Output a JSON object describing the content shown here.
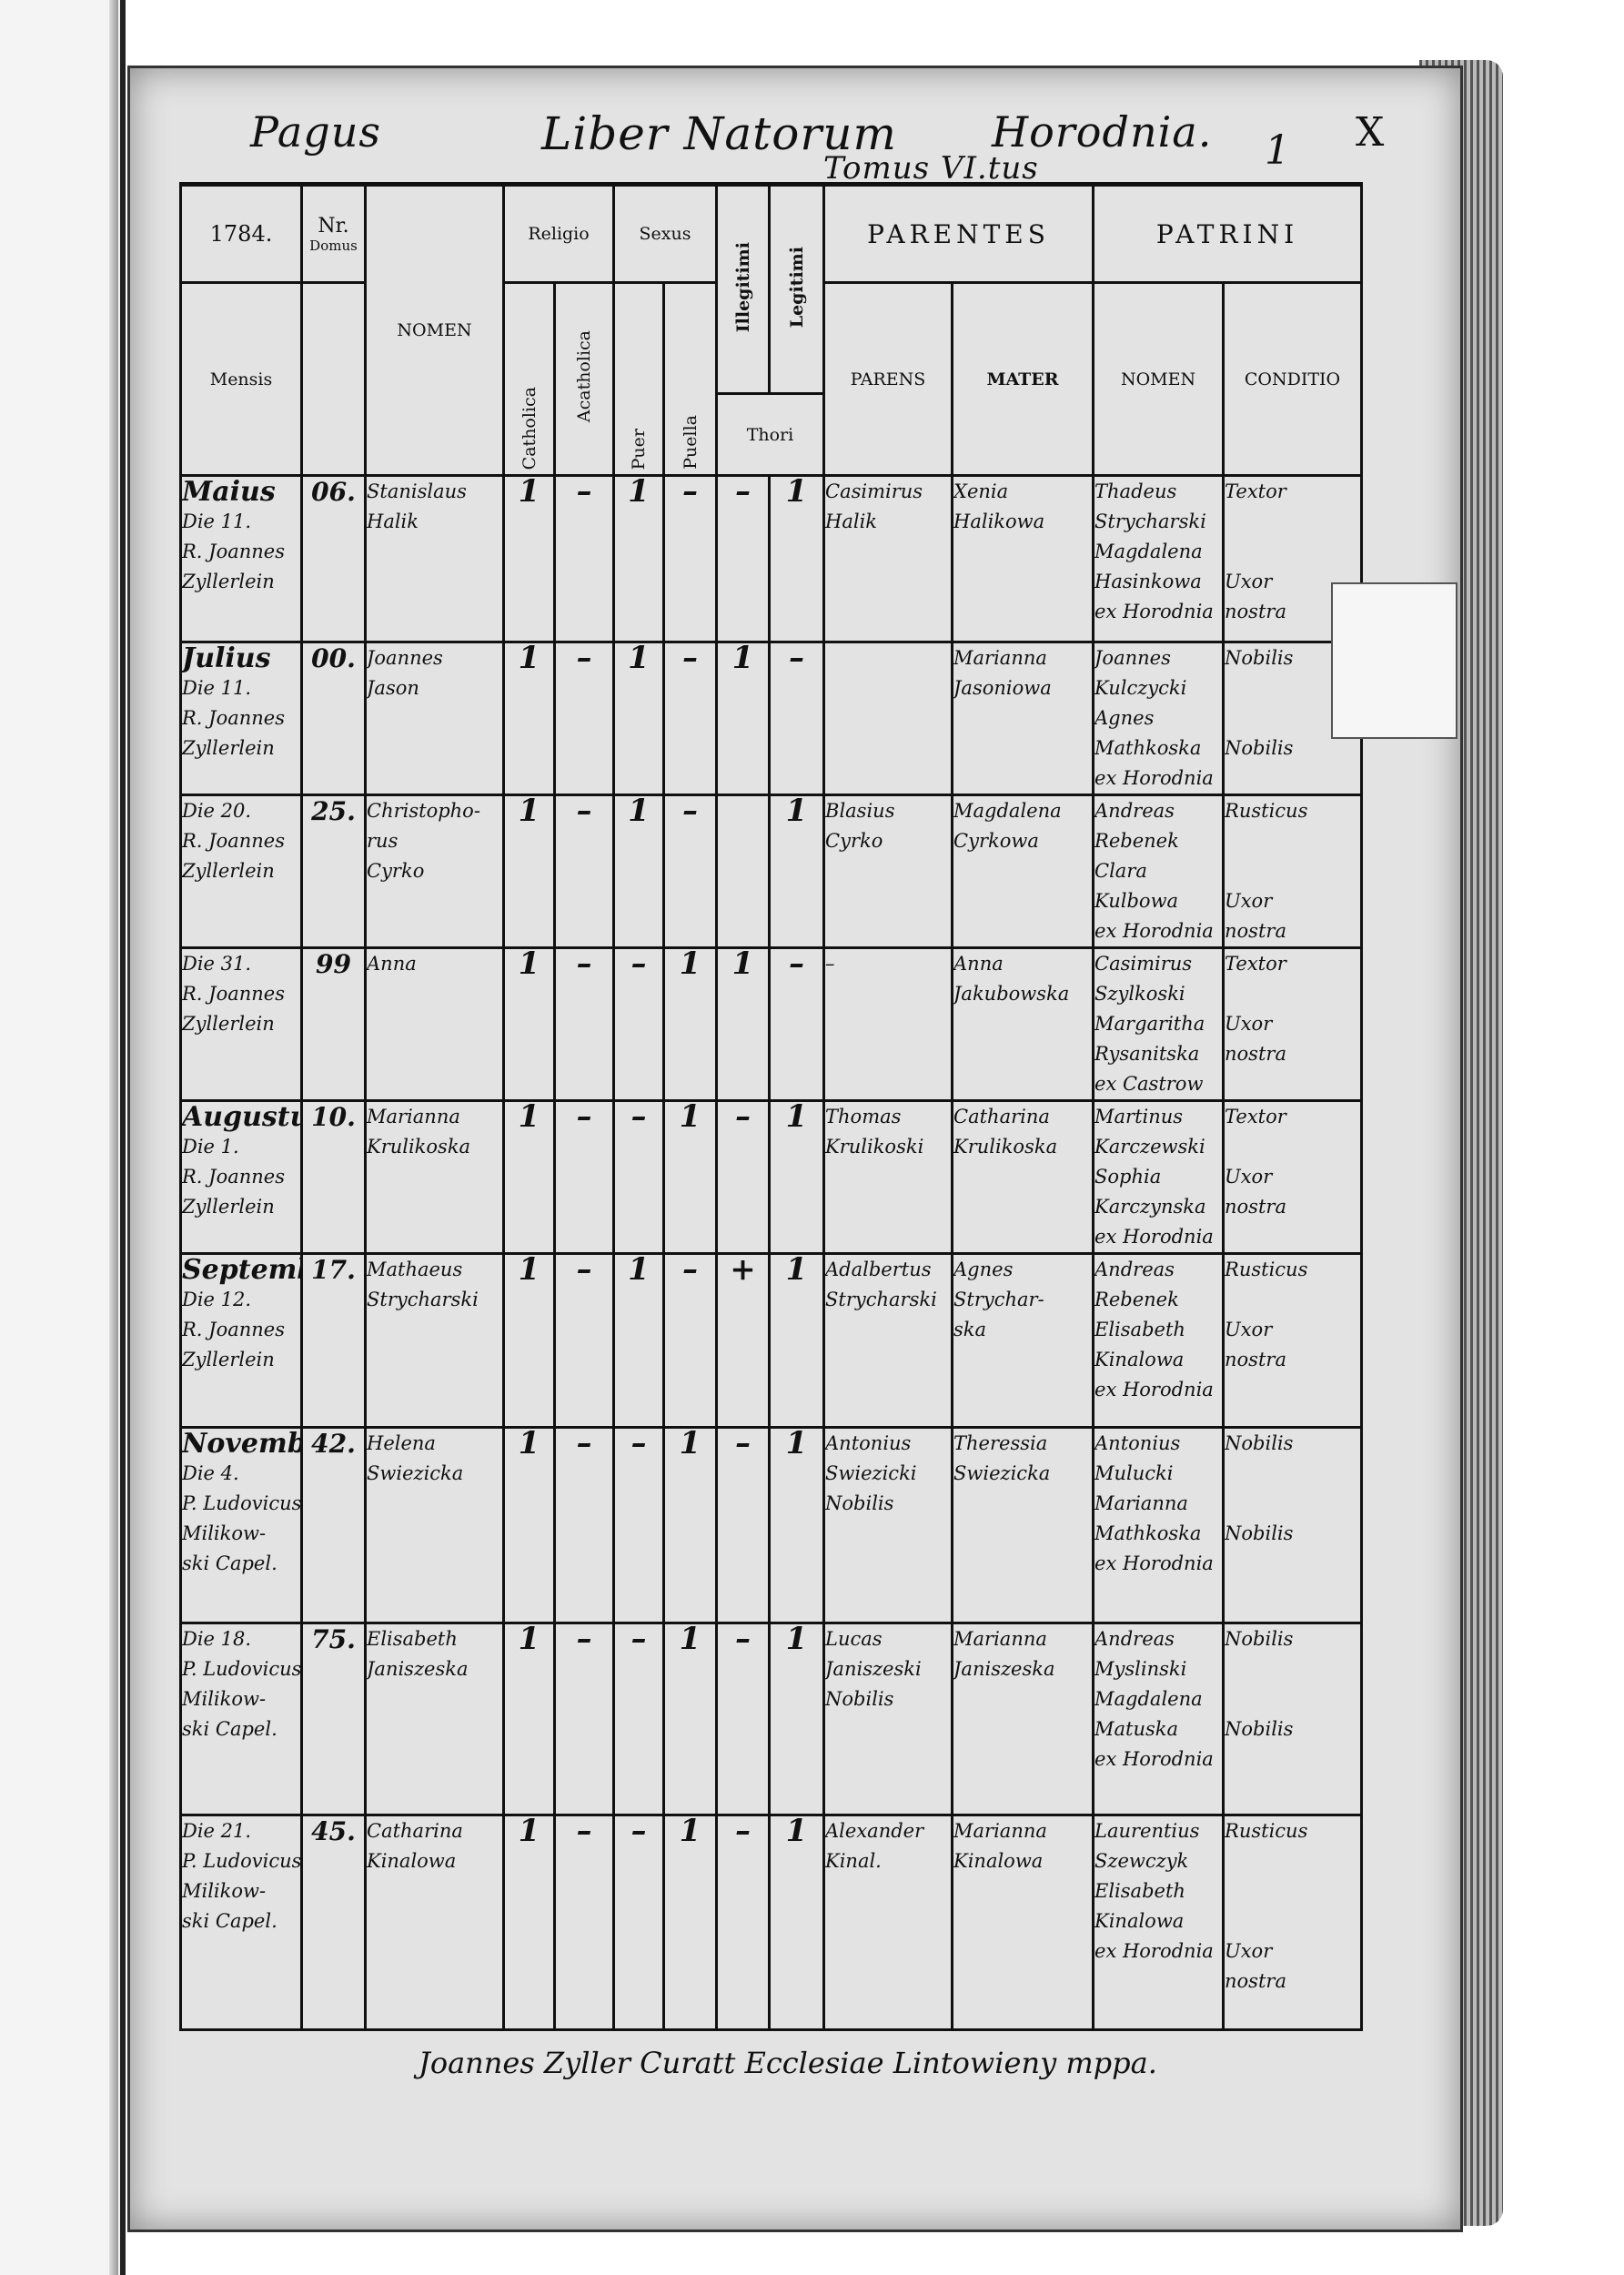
{
  "header": {
    "pagus": "Pagus",
    "title": "Liber Natorum",
    "place": "Horodnia.",
    "tomus": "Tomus VI.tus",
    "folio": "1",
    "mark": "X"
  },
  "columns": {
    "year": "1784.",
    "nr": "Nr.",
    "domus": "Domus",
    "mensis": "Mensis",
    "nomen": "NOMEN",
    "religio": "Religio",
    "catholica": "Catholica",
    "acatholica": "Acatholica",
    "sexus": "Sexus",
    "puer": "Puer",
    "puella": "Puella",
    "illegitimi": "Illegitimi",
    "legitimi": "Legitimi",
    "thori": "Thori",
    "parentes": "PARENTES",
    "parens": "PARENS",
    "mater": "MATER",
    "patrini": "PATRINI",
    "patrini_nomen": "NOMEN",
    "conditio": "CONDITIO"
  },
  "rows": [
    {
      "mensis": [
        "Maius",
        "Die 11.",
        "R. Joannes",
        "Zyllerlein"
      ],
      "domus": "06.",
      "nomen": [
        "Stanislaus",
        "Halik"
      ],
      "catholica": "1",
      "acatholica": "–",
      "puer": "1",
      "puella": "–",
      "illegitimi": "–",
      "legitimi": "1",
      "parens": [
        "Casimirus",
        "Halik"
      ],
      "mater": [
        "Xenia",
        "Halikowa"
      ],
      "patrini": [
        "Thadeus",
        "Strycharski",
        "Magdalena",
        "Hasinkowa",
        "ex Horodnia"
      ],
      "conditio": [
        "Textor",
        "",
        "",
        "Uxor",
        "nostra"
      ]
    },
    {
      "mensis": [
        "Julius",
        "Die 11.",
        "R. Joannes",
        "Zyllerlein"
      ],
      "domus": "00.",
      "nomen": [
        "Joannes",
        "Jason"
      ],
      "catholica": "1",
      "acatholica": "–",
      "puer": "1",
      "puella": "–",
      "illegitimi": "1",
      "legitimi": "–",
      "parens": [
        ""
      ],
      "mater": [
        "Marianna",
        "Jasoniowa"
      ],
      "patrini": [
        "Joannes",
        "Kulczycki",
        "Agnes",
        "Mathkoska",
        "ex Horodnia"
      ],
      "conditio": [
        "Nobilis",
        "",
        "",
        "Nobilis"
      ]
    },
    {
      "mensis": [
        "Die 20.",
        "R. Joannes",
        "Zyllerlein"
      ],
      "domus": "25.",
      "nomen": [
        "Christopho-",
        "rus",
        "Cyrko"
      ],
      "catholica": "1",
      "acatholica": "–",
      "puer": "1",
      "puella": "–",
      "illegitimi": "",
      "legitimi": "1",
      "parens": [
        "Blasius",
        "Cyrko"
      ],
      "mater": [
        "Magdalena",
        "Cyrkowa"
      ],
      "patrini": [
        "Andreas",
        "Rebenek",
        "Clara",
        "Kulbowa",
        "ex Horodnia"
      ],
      "conditio": [
        "Rusticus",
        "",
        "",
        "Uxor",
        "nostra"
      ]
    },
    {
      "mensis": [
        "Die 31.",
        "R. Joannes",
        "Zyllerlein"
      ],
      "domus": "99",
      "nomen": [
        "Anna"
      ],
      "catholica": "1",
      "acatholica": "–",
      "puer": "–",
      "puella": "1",
      "illegitimi": "1",
      "legitimi": "–",
      "parens": [
        "–"
      ],
      "mater": [
        "Anna",
        "Jakubowska"
      ],
      "patrini": [
        "Casimirus",
        "Szylkoski",
        "Margaritha",
        "Rysanitska",
        "ex Castrow"
      ],
      "conditio": [
        "Textor",
        "",
        "Uxor",
        "nostra"
      ]
    },
    {
      "mensis": [
        "Augustus",
        "Die 1.",
        "R. Joannes",
        "Zyllerlein"
      ],
      "domus": "10.",
      "nomen": [
        "Marianna",
        "Krulikoska"
      ],
      "catholica": "1",
      "acatholica": "–",
      "puer": "–",
      "puella": "1",
      "illegitimi": "–",
      "legitimi": "1",
      "parens": [
        "Thomas",
        "Krulikoski"
      ],
      "mater": [
        "Catharina",
        "Krulikoska"
      ],
      "patrini": [
        "Martinus",
        "Karczewski",
        "Sophia",
        "Karczynska",
        "ex Horodnia"
      ],
      "conditio": [
        "Textor",
        "",
        "Uxor",
        "nostra"
      ]
    },
    {
      "mensis": [
        "September",
        "Die 12.",
        "R. Joannes",
        "Zyllerlein"
      ],
      "domus": "17.",
      "nomen": [
        "Mathaeus",
        "Strycharski"
      ],
      "catholica": "1",
      "acatholica": "–",
      "puer": "1",
      "puella": "–",
      "illegitimi": "+",
      "legitimi": "1",
      "parens": [
        "Adalbertus",
        "Strycharski"
      ],
      "mater": [
        "Agnes",
        "Strychar-",
        "ska"
      ],
      "patrini": [
        "Andreas",
        "Rebenek",
        "Elisabeth",
        "Kinalowa",
        "ex Horodnia"
      ],
      "conditio": [
        "Rusticus",
        "",
        "Uxor",
        "nostra"
      ]
    },
    {
      "mensis": [
        "November",
        "Die 4.",
        "P. Ludovicus",
        "Milikow-",
        "ski Capel."
      ],
      "domus": "42.",
      "nomen": [
        "Helena",
        "Swiezicka"
      ],
      "catholica": "1",
      "acatholica": "–",
      "puer": "–",
      "puella": "1",
      "illegitimi": "–",
      "legitimi": "1",
      "parens": [
        "Antonius",
        "Swiezicki",
        "Nobilis"
      ],
      "mater": [
        "Theressia",
        "Swiezicka"
      ],
      "patrini": [
        "Antonius",
        "Mulucki",
        "Marianna",
        "Mathkoska",
        "ex Horodnia"
      ],
      "conditio": [
        "Nobilis",
        "",
        "",
        "Nobilis"
      ]
    },
    {
      "mensis": [
        "Die 18.",
        "P. Ludovicus",
        "Milikow-",
        "ski Capel."
      ],
      "domus": "75.",
      "nomen": [
        "Elisabeth",
        "Janiszeska"
      ],
      "catholica": "1",
      "acatholica": "–",
      "puer": "–",
      "puella": "1",
      "illegitimi": "–",
      "legitimi": "1",
      "parens": [
        "Lucas",
        "Janiszeski",
        "Nobilis"
      ],
      "mater": [
        "Marianna",
        "Janiszeska"
      ],
      "patrini": [
        "Andreas",
        "Myslinski",
        "Magdalena",
        "Matuska",
        "ex Horodnia"
      ],
      "conditio": [
        "Nobilis",
        "",
        "",
        "Nobilis"
      ]
    },
    {
      "mensis": [
        "Die 21.",
        "P. Ludovicus",
        "Milikow-",
        "ski Capel."
      ],
      "domus": "45.",
      "nomen": [
        "Catharina",
        "Kinalowa"
      ],
      "catholica": "1",
      "acatholica": "–",
      "puer": "–",
      "puella": "1",
      "illegitimi": "–",
      "legitimi": "1",
      "parens": [
        "Alexander",
        "Kinal."
      ],
      "mater": [
        "Marianna",
        "Kinalowa"
      ],
      "patrini": [
        "Laurentius",
        "Szewczyk",
        "Elisabeth",
        "Kinalowa",
        "ex Horodnia"
      ],
      "conditio": [
        "Rusticus",
        "",
        "",
        "",
        "Uxor",
        "nostra"
      ]
    }
  ],
  "footer": {
    "signature": "Joannes Zyller Curatt Ecclesiae Lintowieny mppa."
  }
}
